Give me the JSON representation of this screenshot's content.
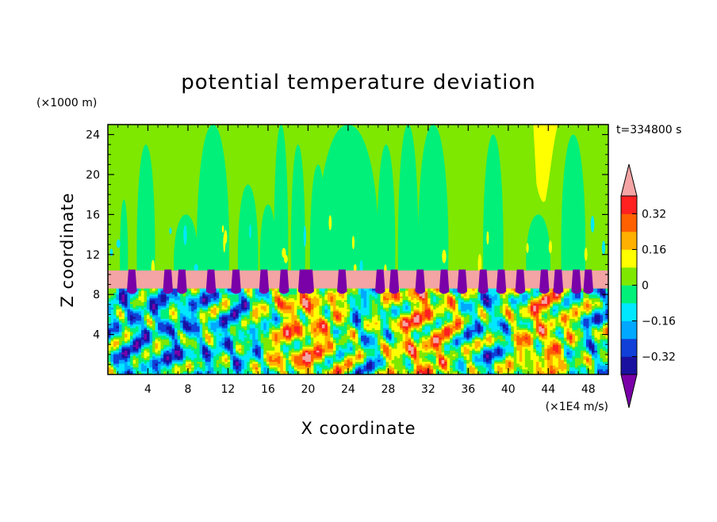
{
  "chart_data": {
    "type": "heatmap",
    "title": "potential temperature deviation",
    "xlabel": "X coordinate",
    "ylabel": "Z coordinate",
    "x_unit": "(×1E4 m/s)",
    "y_unit": "(×1000 m)",
    "time_label": "t=334800 s",
    "xlim": [
      0,
      50
    ],
    "ylim": [
      0,
      25
    ],
    "x_ticks": [
      4,
      8,
      12,
      16,
      20,
      24,
      28,
      32,
      36,
      40,
      44,
      48
    ],
    "y_ticks": [
      4,
      8,
      12,
      16,
      20,
      24
    ],
    "colorbar": {
      "levels": [
        -0.48,
        -0.4,
        -0.32,
        -0.24,
        -0.16,
        -0.08,
        0,
        0.08,
        0.16,
        0.24,
        0.32,
        0.4,
        0.48
      ],
      "colors": [
        "#7a00a8",
        "#1a10a0",
        "#1040d8",
        "#00a8ff",
        "#00e8ff",
        "#00f07a",
        "#7ee800",
        "#ffff00",
        "#ffb000",
        "#ff6000",
        "#ff2020",
        "#f4a4a4"
      ],
      "tick_labels": [
        "-0.32",
        "-0.16",
        "0",
        "0.16",
        "0.32"
      ],
      "tick_values": [
        -0.32,
        -0.16,
        0,
        0.16,
        0.32
      ]
    },
    "regions": {
      "upper_background_value": 0.04,
      "stratosphere_plumes": [
        {
          "x": 1.6,
          "halfwidth": 0.4,
          "ztop": 17.5,
          "value": -0.04
        },
        {
          "x": 3.8,
          "halfwidth": 0.9,
          "ztop": 23,
          "value": -0.04
        },
        {
          "x": 7.8,
          "halfwidth": 1.2,
          "ztop": 16,
          "value": -0.04
        },
        {
          "x": 10.5,
          "halfwidth": 1.6,
          "ztop": 25,
          "value": -0.04
        },
        {
          "x": 14,
          "halfwidth": 1.0,
          "ztop": 19,
          "value": -0.04
        },
        {
          "x": 16,
          "halfwidth": 0.8,
          "ztop": 17,
          "value": -0.04
        },
        {
          "x": 17.3,
          "halfwidth": 0.7,
          "ztop": 25,
          "value": -0.04
        },
        {
          "x": 19,
          "halfwidth": 0.7,
          "ztop": 23,
          "value": -0.04
        },
        {
          "x": 21,
          "halfwidth": 0.8,
          "ztop": 21,
          "value": -0.04
        },
        {
          "x": 24,
          "halfwidth": 3.0,
          "ztop": 25,
          "value": -0.04
        },
        {
          "x": 27.8,
          "halfwidth": 0.9,
          "ztop": 23,
          "value": -0.04
        },
        {
          "x": 30,
          "halfwidth": 1.0,
          "ztop": 25,
          "value": -0.04
        },
        {
          "x": 32.5,
          "halfwidth": 1.5,
          "ztop": 25,
          "value": -0.04
        },
        {
          "x": 38.5,
          "halfwidth": 1.0,
          "ztop": 24,
          "value": -0.04
        },
        {
          "x": 43,
          "halfwidth": 1.2,
          "ztop": 16,
          "value": -0.04
        },
        {
          "x": 46.5,
          "halfwidth": 1.2,
          "ztop": 24,
          "value": -0.04
        }
      ],
      "warm_plume": {
        "x": 43.5,
        "halfwidth": 1.0,
        "zbottom": 17.5,
        "value": 0.12
      },
      "tropopause_layer": {
        "zbottom": 8.6,
        "ztop": 10.4,
        "value": 0.48
      },
      "tropopause_cold_pockets": [
        2.4,
        6.0,
        7.4,
        10.3,
        12.8,
        15.6,
        17.6,
        19.5,
        20.1,
        23.4,
        27.2,
        28.6,
        31.2,
        33.6,
        35.4,
        37.5,
        39.3,
        41.2,
        43.6,
        45.0,
        46.8,
        48.0
      ],
      "turbulent_layer": {
        "zbottom": 0,
        "ztop": 8.6,
        "warm_centers": [
          20,
          31,
          44
        ],
        "cold_centers": [
          2,
          7,
          13,
          26,
          38,
          48
        ]
      }
    }
  }
}
